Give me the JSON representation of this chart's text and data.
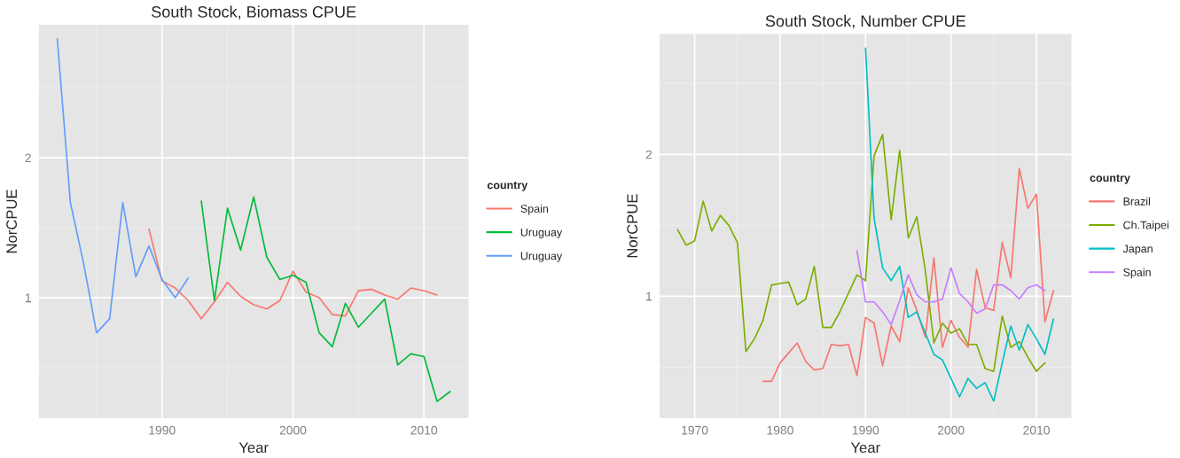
{
  "chart_data": [
    {
      "type": "line",
      "title": "South Stock, Biomass CPUE",
      "xlabel": "Year",
      "ylabel": "NorCPUE",
      "legend_title": "country",
      "legend": "right",
      "grid": true,
      "xlim": [
        1980.6,
        2013.4
      ],
      "xticks": [
        1990,
        2000,
        2010
      ],
      "ylim": [
        0.14,
        2.95
      ],
      "yticks": [
        1,
        2
      ],
      "series": [
        {
          "name": "Spain",
          "color": "#F8766D",
          "x": [
            1989,
            1990,
            1991,
            1992,
            1993,
            1994,
            1995,
            1996,
            1997,
            1998,
            1999,
            2000,
            2001,
            2002,
            2003,
            2004,
            2005,
            2006,
            2007,
            2008,
            2009,
            2010,
            2011
          ],
          "values": [
            1.49,
            1.12,
            1.07,
            0.98,
            0.85,
            0.97,
            1.11,
            1.01,
            0.95,
            0.92,
            0.98,
            1.19,
            1.04,
            1.0,
            0.88,
            0.87,
            1.05,
            1.06,
            1.02,
            0.99,
            1.07,
            1.05,
            1.02
          ]
        },
        {
          "name": "Uruguay",
          "color": "#00BA38",
          "x": [
            1993,
            1994,
            1995,
            1996,
            1997,
            1998,
            1999,
            2000,
            2001,
            2002,
            2003,
            2004,
            2005,
            2006,
            2007,
            2008,
            2009,
            2010,
            2011,
            2012
          ],
          "values": [
            1.69,
            0.98,
            1.64,
            1.34,
            1.72,
            1.29,
            1.13,
            1.16,
            1.11,
            0.75,
            0.65,
            0.96,
            0.79,
            0.89,
            0.99,
            0.52,
            0.6,
            0.58,
            0.26,
            0.33
          ]
        },
        {
          "name": "Uruguay",
          "color": "#619CFF",
          "x": [
            1982,
            1983,
            1984,
            1985,
            1986,
            1987,
            1988,
            1989,
            1990,
            1991,
            1992
          ],
          "values": [
            2.85,
            1.68,
            1.25,
            0.75,
            0.85,
            1.68,
            1.15,
            1.37,
            1.13,
            1.0,
            1.14
          ]
        }
      ]
    },
    {
      "type": "line",
      "title": "South Stock, Number CPUE",
      "xlabel": "Year",
      "ylabel": "NorCPUE",
      "legend_title": "country",
      "legend": "right",
      "grid": true,
      "xlim": [
        1965.9,
        2014.1
      ],
      "xticks": [
        1970,
        1980,
        1990,
        2000,
        2010
      ],
      "ylim": [
        0.14,
        2.85
      ],
      "yticks": [
        1,
        2
      ],
      "series": [
        {
          "name": "Brazil",
          "color": "#F8766D",
          "x": [
            1978,
            1979,
            1980,
            1981,
            1982,
            1983,
            1984,
            1985,
            1986,
            1987,
            1988,
            1989,
            1990,
            1991,
            1992,
            1993,
            1994,
            1995,
            1996,
            1997,
            1998,
            1999,
            2000,
            2001,
            2002,
            2003,
            2004,
            2005,
            2006,
            2007,
            2008,
            2009,
            2010,
            2011,
            2012
          ],
          "values": [
            0.4,
            0.4,
            0.53,
            0.6,
            0.67,
            0.54,
            0.48,
            0.49,
            0.66,
            0.65,
            0.66,
            0.44,
            0.85,
            0.81,
            0.51,
            0.79,
            0.68,
            1.06,
            0.9,
            0.71,
            1.27,
            0.64,
            0.83,
            0.71,
            0.64,
            1.19,
            0.92,
            0.9,
            1.38,
            1.13,
            1.9,
            1.62,
            1.72,
            0.82,
            1.04
          ]
        },
        {
          "name": "Ch.Taipei",
          "color": "#7CAE00",
          "x": [
            1968,
            1969,
            1970,
            1971,
            1972,
            1973,
            1974,
            1975,
            1976,
            1977,
            1978,
            1979,
            1980,
            1981,
            1982,
            1983,
            1984,
            1985,
            1986,
            1987,
            1988,
            1989,
            1990,
            1991,
            1992,
            1993,
            1994,
            1995,
            1996,
            1997,
            1998,
            1999,
            2000,
            2001,
            2002,
            2003,
            2004,
            2005,
            2006,
            2007,
            2008,
            2009,
            2010,
            2011
          ],
          "values": [
            1.47,
            1.36,
            1.39,
            1.67,
            1.46,
            1.57,
            1.5,
            1.38,
            0.61,
            0.7,
            0.83,
            1.08,
            1.09,
            1.1,
            0.94,
            0.98,
            1.21,
            0.78,
            0.78,
            0.89,
            1.02,
            1.15,
            1.11,
            1.99,
            2.14,
            1.54,
            2.03,
            1.41,
            1.56,
            1.18,
            0.67,
            0.81,
            0.74,
            0.77,
            0.66,
            0.66,
            0.49,
            0.47,
            0.86,
            0.64,
            0.68,
            0.57,
            0.47,
            0.53
          ]
        },
        {
          "name": "Japan",
          "color": "#00BFC4",
          "x": [
            1990,
            1991,
            1992,
            1993,
            1994,
            1995,
            1996,
            1997,
            1998,
            1999,
            2000,
            2001,
            2002,
            2003,
            2004,
            2005,
            2006,
            2007,
            2008,
            2009,
            2010,
            2011,
            2012
          ],
          "values": [
            2.75,
            1.55,
            1.2,
            1.11,
            1.21,
            0.85,
            0.89,
            0.74,
            0.59,
            0.55,
            0.42,
            0.29,
            0.42,
            0.35,
            0.39,
            0.26,
            0.53,
            0.79,
            0.62,
            0.8,
            0.7,
            0.59,
            0.84
          ]
        },
        {
          "name": "Spain",
          "color": "#C77CFF",
          "x": [
            1989,
            1990,
            1991,
            1992,
            1993,
            1994,
            1995,
            1996,
            1997,
            1998,
            1999,
            2000,
            2001,
            2002,
            2003,
            2004,
            2005,
            2006,
            2007,
            2008,
            2009,
            2010,
            2011
          ],
          "values": [
            1.32,
            0.96,
            0.96,
            0.89,
            0.8,
            0.97,
            1.15,
            1.01,
            0.96,
            0.96,
            0.98,
            1.2,
            1.02,
            0.96,
            0.88,
            0.91,
            1.08,
            1.08,
            1.04,
            0.98,
            1.06,
            1.08,
            1.04
          ]
        }
      ]
    }
  ]
}
